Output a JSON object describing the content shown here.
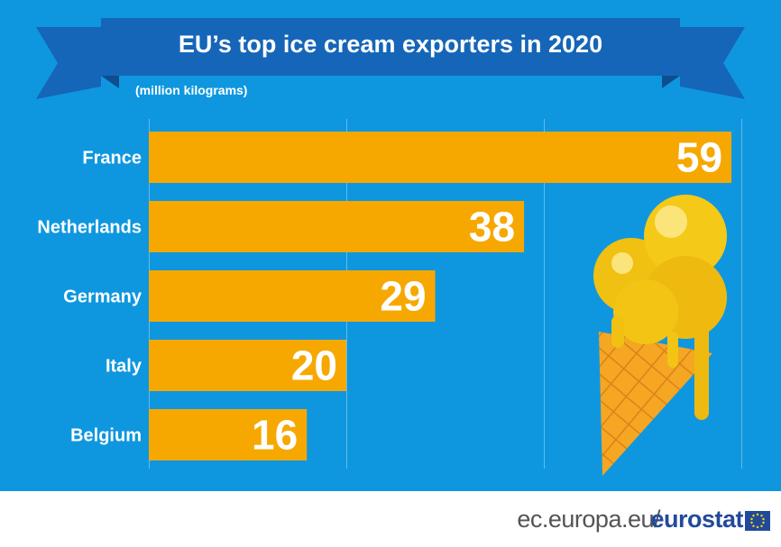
{
  "title": "EU’s top ice cream exporters in 2020",
  "subtitle": "(million kilograms)",
  "footer": {
    "source_url": "ec.europa.eu/",
    "brand": "eurostat"
  },
  "colors": {
    "background": "#0e97df",
    "banner": "#1566b8",
    "banner_dark": "#0d4d90",
    "bar": "#f6a800",
    "label": "#ffffff",
    "brand": "#224a9b"
  },
  "icons": [
    "ice-cream-cone-icon",
    "eu-flag-icon"
  ],
  "chart_data": {
    "type": "bar",
    "orientation": "horizontal",
    "categories": [
      "France",
      "Netherlands",
      "Germany",
      "Italy",
      "Belgium"
    ],
    "values": [
      59,
      38,
      29,
      20,
      16
    ],
    "title": "EU’s top ice cream exporters in 2020",
    "unit": "(million kilograms)",
    "xlim": [
      0,
      60
    ],
    "grid": true,
    "data_labels": true
  }
}
